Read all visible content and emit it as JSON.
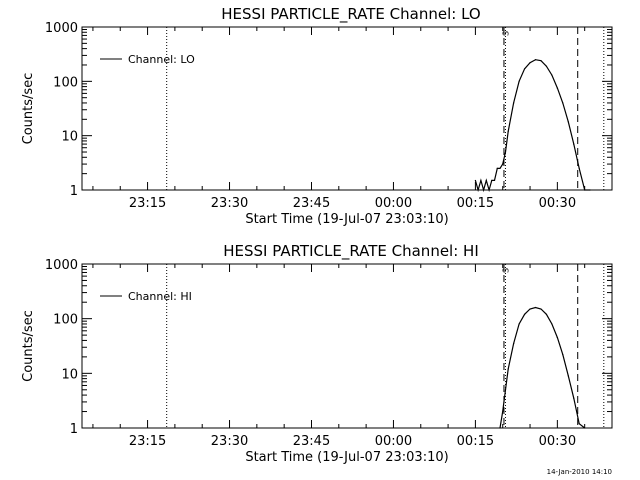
{
  "footer_timestamp": "14-Jan-2010 14:10",
  "chart_data": [
    {
      "type": "line",
      "title": "HESSI PARTICLE_RATE Channel: LO",
      "xlabel": "Start Time (19-Jul-07 23:03:10)",
      "ylabel": "Counts/sec",
      "yscale": "log",
      "ylim": [
        1,
        1000
      ],
      "xlim_minutes": [
        0,
        97
      ],
      "xticks": [
        {
          "minute": 12,
          "label": "23:15"
        },
        {
          "minute": 27,
          "label": "23:30"
        },
        {
          "minute": 42,
          "label": "23:45"
        },
        {
          "minute": 57,
          "label": "00:00"
        },
        {
          "minute": 72,
          "label": "00:15"
        },
        {
          "minute": 87,
          "label": "00:30"
        }
      ],
      "yticks": [
        {
          "value": 1,
          "label": "1"
        },
        {
          "value": 10,
          "label": "10"
        },
        {
          "value": 100,
          "label": "100"
        },
        {
          "value": 1000,
          "label": "1000"
        }
      ],
      "legend": {
        "label": "Channel: LO",
        "position": "top-left"
      },
      "flag_label": "S",
      "dotted_lines_minutes": [
        15.5,
        77.5,
        95.5
      ],
      "dashed_lines_minutes": [
        77.5,
        91
      ],
      "series": [
        {
          "x": [
            72,
            72.5,
            73,
            73.5,
            74,
            74.5,
            75,
            75.5,
            76,
            76.5,
            77,
            77.5,
            78,
            79,
            80,
            81,
            82,
            83,
            84,
            85,
            86,
            87,
            88,
            89,
            90,
            91,
            92,
            93
          ],
          "y": [
            1.5,
            1,
            1.5,
            1,
            1.5,
            1,
            1.5,
            1.5,
            2.5,
            2.5,
            3,
            5,
            12,
            40,
            100,
            170,
            220,
            250,
            240,
            190,
            130,
            75,
            40,
            18,
            7,
            2.5,
            1,
            1
          ]
        }
      ]
    },
    {
      "type": "line",
      "title": "HESSI PARTICLE_RATE Channel: HI",
      "xlabel": "Start Time (19-Jul-07 23:03:10)",
      "ylabel": "Counts/sec",
      "yscale": "log",
      "ylim": [
        1,
        1000
      ],
      "xlim_minutes": [
        0,
        97
      ],
      "xticks": [
        {
          "minute": 12,
          "label": "23:15"
        },
        {
          "minute": 27,
          "label": "23:30"
        },
        {
          "minute": 42,
          "label": "23:45"
        },
        {
          "minute": 57,
          "label": "00:00"
        },
        {
          "minute": 72,
          "label": "00:15"
        },
        {
          "minute": 87,
          "label": "00:30"
        }
      ],
      "yticks": [
        {
          "value": 1,
          "label": "1"
        },
        {
          "value": 10,
          "label": "10"
        },
        {
          "value": 100,
          "label": "100"
        },
        {
          "value": 1000,
          "label": "1000"
        }
      ],
      "legend": {
        "label": "Channel: HI",
        "position": "top-left"
      },
      "flag_label": "S",
      "dotted_lines_minutes": [
        15.5,
        77.5,
        95.5
      ],
      "dashed_lines_minutes": [
        77.5,
        91
      ],
      "series": [
        {
          "x": [
            76.5,
            77,
            77.5,
            78,
            79,
            80,
            81,
            82,
            83,
            84,
            85,
            86,
            87,
            88,
            89,
            90,
            91,
            92
          ],
          "y": [
            1,
            2,
            5,
            12,
            35,
            80,
            120,
            150,
            160,
            150,
            120,
            80,
            45,
            22,
            9,
            3.5,
            1.2,
            1
          ]
        }
      ]
    }
  ]
}
